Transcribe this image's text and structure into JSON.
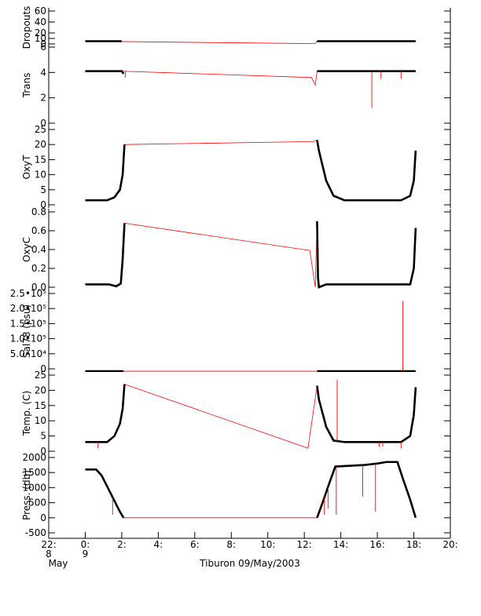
{
  "figure": {
    "title_left_1": "22:",
    "title_left_2": "8",
    "title_left_3": "May",
    "xlabel": "Tiburon 09/May/2003",
    "xticks": [
      {
        "h": -2,
        "top": "22:",
        "bot": "8"
      },
      {
        "h": 0,
        "top": "0:",
        "bot": "9"
      },
      {
        "h": 2,
        "top": "2:",
        "bot": ""
      },
      {
        "h": 4,
        "top": "4:",
        "bot": ""
      },
      {
        "h": 6,
        "top": "6:",
        "bot": ""
      },
      {
        "h": 8,
        "top": "8:",
        "bot": ""
      },
      {
        "h": 10,
        "top": "10:",
        "bot": ""
      },
      {
        "h": 12,
        "top": "12:",
        "bot": ""
      },
      {
        "h": 14,
        "top": "14:",
        "bot": ""
      },
      {
        "h": 16,
        "top": "16:",
        "bot": ""
      },
      {
        "h": 18,
        "top": "18:",
        "bot": ""
      },
      {
        "h": 20,
        "top": "20:",
        "bot": ""
      }
    ],
    "month_label": "May"
  },
  "chart_data": [
    {
      "type": "line",
      "ylabel": "Dropouts",
      "ylim": [
        0,
        60
      ],
      "yticks": [
        {
          "v": 0,
          "t": "0"
        },
        {
          "v": 10,
          "t": "10"
        },
        {
          "v": 20,
          "t": "20"
        },
        {
          "v": 40,
          "t": "40"
        },
        {
          "v": 60,
          "t": "60"
        }
      ],
      "black": [
        [
          [
            0,
            5
          ],
          [
            2.0,
            5
          ]
        ],
        [
          [
            12.7,
            5
          ],
          [
            18.1,
            5
          ]
        ]
      ],
      "red": [
        [
          [
            0,
            5
          ],
          [
            12.6,
            0.5
          ],
          [
            12.7,
            5
          ]
        ]
      ]
    },
    {
      "type": "line",
      "ylabel": "Trans",
      "ylim": [
        0,
        6
      ],
      "yticks": [
        {
          "v": 0,
          "t": "0"
        },
        {
          "v": 2,
          "t": "2"
        },
        {
          "v": 4,
          "t": "4"
        },
        {
          "v": 6,
          "t": "6"
        }
      ],
      "black": [
        [
          [
            0,
            4.1
          ],
          [
            2.0,
            4.1
          ],
          [
            2.1,
            3.9
          ]
        ],
        [
          [
            12.7,
            4.1
          ],
          [
            18.1,
            4.1
          ]
        ]
      ],
      "red": [
        [
          [
            2.0,
            4.1
          ],
          [
            12.4,
            3.6
          ],
          [
            12.6,
            3.0
          ],
          [
            12.7,
            4.1
          ]
        ]
      ],
      "spikes": [
        {
          "x": 15.7,
          "y": 1.2
        },
        {
          "x": 16.2,
          "y": 3.5
        },
        {
          "x": 17.3,
          "y": 3.5
        },
        {
          "x": 2.2,
          "y": 3.6
        }
      ]
    },
    {
      "type": "line",
      "ylabel": "OxyT",
      "ylim": [
        0,
        25
      ],
      "yticks": [
        {
          "v": 0,
          "t": "0"
        },
        {
          "v": 5,
          "t": "5"
        },
        {
          "v": 10,
          "t": "10"
        },
        {
          "v": 15,
          "t": "15"
        },
        {
          "v": 20,
          "t": "20"
        },
        {
          "v": 25,
          "t": "25"
        }
      ],
      "black": [
        [
          [
            0,
            1.5
          ],
          [
            1.2,
            1.5
          ],
          [
            1.6,
            2.5
          ],
          [
            1.9,
            5
          ],
          [
            2.05,
            10
          ],
          [
            2.15,
            20
          ]
        ],
        [
          [
            12.7,
            21.5
          ],
          [
            12.8,
            18
          ],
          [
            13.2,
            8
          ],
          [
            13.6,
            3
          ],
          [
            14.2,
            1.5
          ],
          [
            17.3,
            1.5
          ],
          [
            17.8,
            3
          ],
          [
            18.0,
            8
          ],
          [
            18.1,
            18
          ]
        ]
      ],
      "red": [
        [
          [
            2.15,
            20
          ],
          [
            12.5,
            21
          ],
          [
            12.7,
            21.5
          ]
        ]
      ]
    },
    {
      "type": "line",
      "ylabel": "OxyC",
      "ylim": [
        0,
        0.8
      ],
      "yticks": [
        {
          "v": 0,
          "t": "0.0"
        },
        {
          "v": 0.2,
          "t": "0.2"
        },
        {
          "v": 0.4,
          "t": "0.4"
        },
        {
          "v": 0.6,
          "t": "0.6"
        },
        {
          "v": 0.8,
          "t": "0.8"
        }
      ],
      "black": [
        [
          [
            0,
            0.03
          ],
          [
            1.3,
            0.03
          ],
          [
            1.7,
            0.01
          ],
          [
            1.95,
            0.04
          ],
          [
            2.05,
            0.3
          ],
          [
            2.15,
            0.68
          ]
        ],
        [
          [
            12.7,
            0.7
          ],
          [
            12.75,
            0.1
          ],
          [
            12.8,
            0.0
          ],
          [
            13.2,
            0.03
          ],
          [
            17.3,
            0.03
          ],
          [
            17.8,
            0.03
          ],
          [
            18.0,
            0.2
          ],
          [
            18.1,
            0.63
          ]
        ]
      ],
      "red": [
        [
          [
            2.15,
            0.68
          ],
          [
            12.3,
            0.39
          ],
          [
            12.6,
            0.0
          ],
          [
            12.7,
            0.7
          ]
        ]
      ]
    },
    {
      "type": "line",
      "ylabel": "Sal78 (psu)",
      "ylim": [
        0,
        250000
      ],
      "yticks": [
        {
          "v": 0,
          "t": "0"
        },
        {
          "v": 50000,
          "t": "5.0•10⁴"
        },
        {
          "v": 100000,
          "t": "1.0•10⁵"
        },
        {
          "v": 150000,
          "t": "1.5•10⁵"
        },
        {
          "v": 200000,
          "t": "2.0•10⁵"
        },
        {
          "v": 250000,
          "t": "2.5•10⁵"
        }
      ],
      "black": [
        [
          [
            0,
            -8000
          ],
          [
            2.1,
            -8000
          ]
        ],
        [
          [
            12.7,
            -8000
          ],
          [
            18.1,
            -8000
          ]
        ]
      ],
      "red": [
        [
          [
            2.1,
            -8000
          ],
          [
            12.7,
            -8000
          ]
        ]
      ],
      "spikes": [
        {
          "x": 17.4,
          "y": 225000
        }
      ]
    },
    {
      "type": "line",
      "ylabel": "Temp. (C)",
      "ylim": [
        0,
        25
      ],
      "yticks": [
        {
          "v": 0,
          "t": "0"
        },
        {
          "v": 5,
          "t": "5"
        },
        {
          "v": 10,
          "t": "10"
        },
        {
          "v": 15,
          "t": "15"
        },
        {
          "v": 20,
          "t": "20"
        },
        {
          "v": 25,
          "t": "25"
        }
      ],
      "black": [
        [
          [
            0,
            3
          ],
          [
            1.2,
            3
          ],
          [
            1.6,
            5
          ],
          [
            1.9,
            9
          ],
          [
            2.05,
            14
          ],
          [
            2.15,
            22
          ]
        ],
        [
          [
            12.7,
            21.5
          ],
          [
            12.8,
            17
          ],
          [
            13.2,
            8
          ],
          [
            13.6,
            3.5
          ],
          [
            14.2,
            3
          ],
          [
            17.3,
            3
          ],
          [
            17.8,
            5
          ],
          [
            18.0,
            12
          ],
          [
            18.1,
            21
          ]
        ]
      ],
      "red": [
        [
          [
            2.15,
            22
          ],
          [
            12.2,
            1
          ],
          [
            12.7,
            21.5
          ]
        ]
      ],
      "spikes": [
        {
          "x": 0.7,
          "y": 1
        },
        {
          "x": 13.8,
          "y": 23.5
        },
        {
          "x": 16.1,
          "y": 1.5
        },
        {
          "x": 16.3,
          "y": 1.5
        },
        {
          "x": 17.3,
          "y": 1
        }
      ]
    },
    {
      "type": "line",
      "ylabel": "Press. (db)",
      "ylim": [
        -500,
        2000
      ],
      "yticks": [
        {
          "v": -500,
          "t": "-500"
        },
        {
          "v": 0,
          "t": "0"
        },
        {
          "v": 500,
          "t": "500"
        },
        {
          "v": 1000,
          "t": "1000"
        },
        {
          "v": 1500,
          "t": "1500"
        },
        {
          "v": 2000,
          "t": "2000"
        }
      ],
      "black": [
        [
          [
            0,
            1600
          ],
          [
            0.6,
            1600
          ],
          [
            0.9,
            1400
          ],
          [
            1.4,
            800
          ],
          [
            1.9,
            200
          ],
          [
            2.1,
            0
          ]
        ],
        [
          [
            12.7,
            0
          ],
          [
            13.0,
            500
          ],
          [
            13.4,
            1200
          ],
          [
            13.7,
            1700
          ],
          [
            15.3,
            1750
          ],
          [
            16.0,
            1800
          ],
          [
            16.5,
            1850
          ],
          [
            17.1,
            1850
          ],
          [
            17.4,
            1300
          ],
          [
            17.8,
            600
          ],
          [
            18.1,
            0
          ]
        ]
      ],
      "red": [
        [
          [
            2.1,
            0
          ],
          [
            12.7,
            0
          ]
        ]
      ],
      "spikes": [
        {
          "x": 1.5,
          "y": 100
        },
        {
          "x": 13.1,
          "y": 100
        },
        {
          "x": 13.3,
          "y": 300
        },
        {
          "x": 13.75,
          "y": 100
        },
        {
          "x": 15.2,
          "y": 700
        },
        {
          "x": 15.9,
          "y": 200
        }
      ]
    }
  ]
}
